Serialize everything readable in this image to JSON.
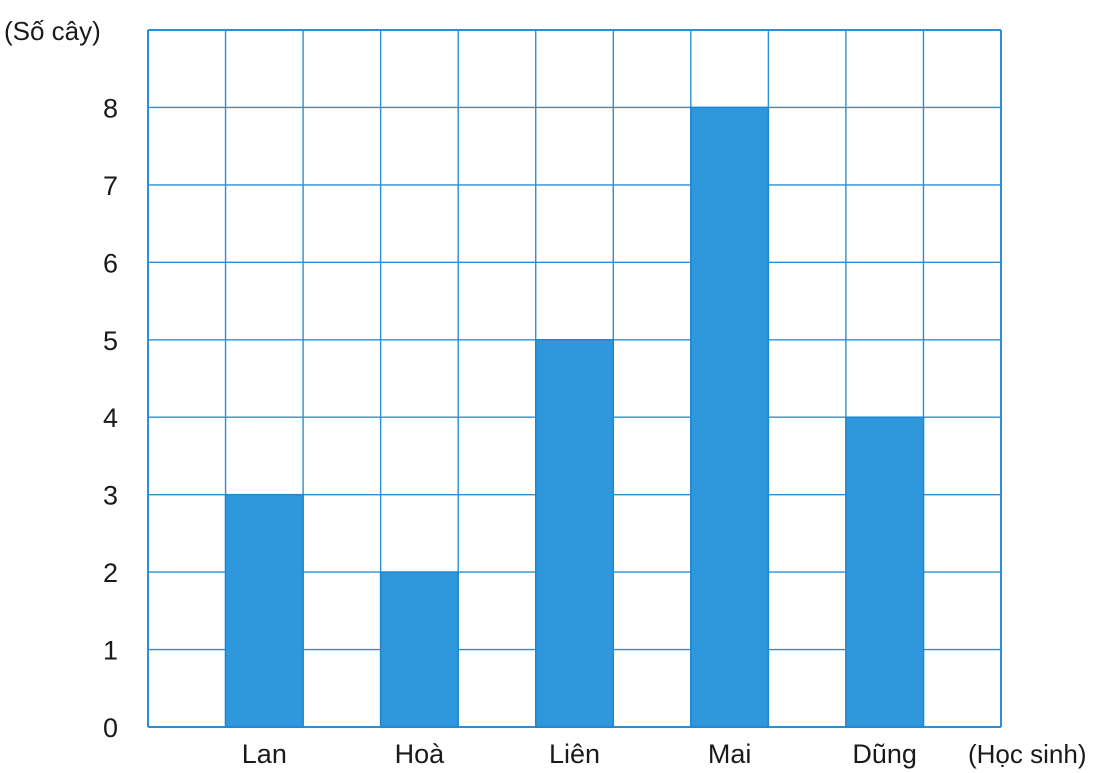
{
  "chart_data": {
    "type": "bar",
    "categories": [
      "Lan",
      "Hoà",
      "Liên",
      "Mai",
      "Dũng"
    ],
    "values": [
      3,
      2,
      5,
      8,
      4
    ],
    "title": "",
    "xlabel": "(Học sinh)",
    "ylabel": "(Số cây)",
    "ylim": [
      0,
      9
    ],
    "yticks": [
      0,
      1,
      2,
      3,
      4,
      5,
      6,
      7,
      8
    ],
    "grid": true,
    "colors": {
      "bar": "#2f97dc",
      "bar_stroke": "#1f86d2",
      "grid": "#2a8fd6"
    }
  }
}
